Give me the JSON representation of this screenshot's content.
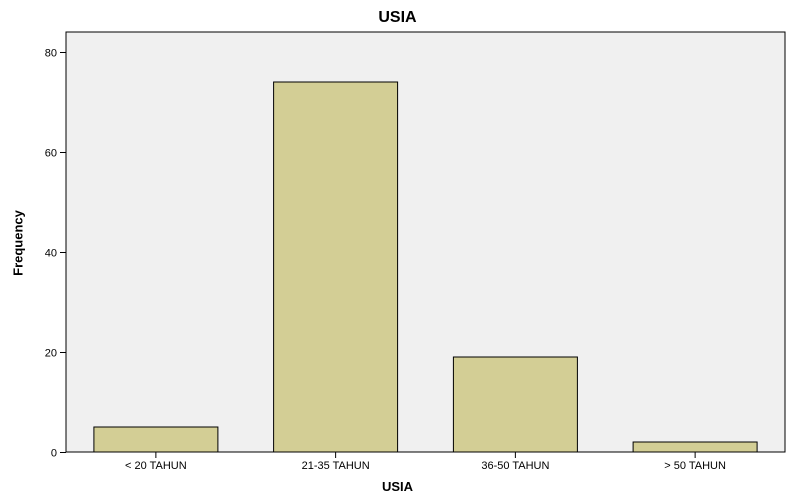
{
  "chart_data": {
    "type": "bar",
    "title": "USIA",
    "xlabel": "USIA",
    "ylabel": "Frequency",
    "categories": [
      "< 20 TAHUN",
      "21-35 TAHUN",
      "36-50 TAHUN",
      "> 50 TAHUN"
    ],
    "values": [
      5,
      74,
      19,
      2
    ],
    "ylim": [
      0,
      84
    ],
    "yticks": [
      0,
      20,
      40,
      60,
      80
    ],
    "grid": false,
    "colors": {
      "bar_fill": "#d3ce95",
      "bar_stroke": "#000000",
      "plot_background": "#f0f0f0",
      "plot_border": "#000000"
    }
  }
}
